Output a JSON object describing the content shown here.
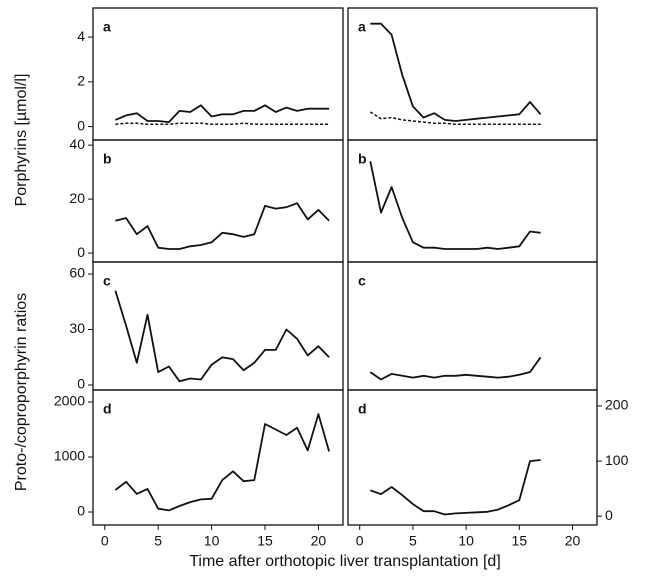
{
  "xlabel": "Time after orthotopic liver transplantation [d]",
  "ylabels": [
    "Porphyrins [µmol/l]",
    "Proto-/coproporphyrin ratios"
  ],
  "chart_data": [
    {
      "type": "line",
      "label": "a",
      "x": [
        1,
        2,
        3,
        4,
        5,
        6,
        7,
        8,
        9,
        10,
        11,
        12,
        13,
        14,
        15,
        16,
        17,
        18,
        19,
        20,
        21
      ],
      "xlim": [
        -1.1,
        22.3
      ],
      "ylim": [
        -0.6,
        5.3
      ],
      "yticks": [
        0,
        2,
        4
      ],
      "series": [
        {
          "color": "#111",
          "dashed": false,
          "values": [
            0.3,
            0.5,
            0.6,
            0.25,
            0.25,
            0.2,
            0.7,
            0.65,
            0.95,
            0.45,
            0.55,
            0.55,
            0.7,
            0.7,
            0.95,
            0.65,
            0.85,
            0.7,
            0.8,
            0.8,
            0.8
          ]
        },
        {
          "color": "#111",
          "dashed": true,
          "values": [
            0.1,
            0.15,
            0.15,
            0.1,
            0.1,
            0.1,
            0.15,
            0.15,
            0.15,
            0.1,
            0.1,
            0.1,
            0.15,
            0.1,
            0.1,
            0.1,
            0.1,
            0.1,
            0.1,
            0.1,
            0.1
          ]
        }
      ]
    },
    {
      "type": "line",
      "label": "a",
      "x": [
        1,
        2,
        3,
        4,
        5,
        6,
        7,
        8,
        9,
        10,
        11,
        12,
        13,
        14,
        15,
        16,
        17
      ],
      "xlim": [
        -1.1,
        22.3
      ],
      "ylim": [
        -0.6,
        5.3
      ],
      "series": [
        {
          "color": "#111",
          "dashed": false,
          "values": [
            4.6,
            4.6,
            4.1,
            2.3,
            0.9,
            0.4,
            0.6,
            0.3,
            0.25,
            0.3,
            0.35,
            0.4,
            0.45,
            0.5,
            0.55,
            1.1,
            0.55
          ]
        },
        {
          "color": "#111",
          "dashed": true,
          "values": [
            0.65,
            0.35,
            0.4,
            0.3,
            0.25,
            0.2,
            0.15,
            0.15,
            0.1,
            0.1,
            0.1,
            0.1,
            0.1,
            0.1,
            0.1,
            0.1,
            0.1
          ]
        }
      ]
    },
    {
      "type": "line",
      "label": "b",
      "x": [
        1,
        2,
        3,
        4,
        5,
        6,
        7,
        8,
        9,
        10,
        11,
        12,
        13,
        14,
        15,
        16,
        17,
        18,
        19,
        20,
        21
      ],
      "xlim": [
        -1.1,
        22.3
      ],
      "ylim": [
        -3.3,
        41.9
      ],
      "yticks": [
        0,
        20,
        40
      ],
      "series": [
        {
          "color": "#111",
          "dashed": false,
          "values": [
            12,
            13,
            7,
            10,
            2,
            1.5,
            1.5,
            2.5,
            3,
            4,
            7.5,
            7,
            6,
            7,
            17.5,
            16.5,
            17,
            18.5,
            12.5,
            16,
            12
          ]
        }
      ]
    },
    {
      "type": "line",
      "label": "b",
      "x": [
        1,
        2,
        3,
        4,
        5,
        6,
        7,
        8,
        9,
        10,
        11,
        12,
        13,
        14,
        15,
        16,
        17
      ],
      "xlim": [
        -1.1,
        22.3
      ],
      "ylim": [
        -3.3,
        41.9
      ],
      "series": [
        {
          "color": "#111",
          "dashed": false,
          "values": [
            34,
            15,
            24.5,
            13,
            4,
            2,
            2,
            1.5,
            1.5,
            1.5,
            1.5,
            2,
            1.5,
            2,
            2.5,
            8,
            7.5
          ]
        }
      ]
    },
    {
      "type": "line",
      "label": "c",
      "x": [
        1,
        2,
        3,
        4,
        5,
        6,
        7,
        8,
        9,
        10,
        11,
        12,
        13,
        14,
        15,
        16,
        17,
        18,
        19,
        20,
        21
      ],
      "xlim": [
        -1.1,
        22.3
      ],
      "ylim": [
        -2.7,
        66.5
      ],
      "yticks": [
        0,
        30,
        60
      ],
      "series": [
        {
          "color": "#111",
          "dashed": false,
          "values": [
            51,
            32,
            12,
            38,
            7,
            10,
            2,
            3.5,
            3,
            11,
            15,
            14,
            8,
            12,
            19,
            19,
            30,
            25,
            16,
            21,
            15
          ]
        }
      ]
    },
    {
      "type": "line",
      "label": "c",
      "x": [
        1,
        2,
        3,
        4,
        5,
        6,
        7,
        8,
        9,
        10,
        11,
        12,
        13,
        14,
        15,
        16,
        17
      ],
      "xlim": [
        -1.1,
        22.3
      ],
      "ylim": [
        -2.7,
        66.5
      ],
      "series": [
        {
          "color": "#111",
          "dashed": false,
          "values": [
            7,
            3,
            6,
            5,
            4,
            5,
            4,
            5,
            5,
            5.5,
            5,
            4.5,
            4,
            4.5,
            5.5,
            7,
            15
          ]
        }
      ]
    },
    {
      "type": "line",
      "label": "d",
      "x": [
        1,
        2,
        3,
        4,
        5,
        6,
        7,
        8,
        9,
        10,
        11,
        12,
        13,
        14,
        15,
        16,
        17,
        18,
        19,
        20,
        21
      ],
      "xlim": [
        -1.1,
        22.3
      ],
      "xticks": [
        0,
        5,
        10,
        15,
        20
      ],
      "ylim": [
        -236,
        2218
      ],
      "yticks": [
        0,
        1000,
        2000
      ],
      "series": [
        {
          "color": "#111",
          "dashed": false,
          "values": [
            400,
            550,
            330,
            420,
            60,
            30,
            110,
            180,
            230,
            240,
            580,
            740,
            560,
            580,
            1600,
            1500,
            1400,
            1530,
            1120,
            1780,
            1100
          ]
        }
      ]
    },
    {
      "type": "line",
      "label": "d",
      "x": [
        1,
        2,
        3,
        4,
        5,
        6,
        7,
        8,
        9,
        10,
        11,
        12,
        13,
        14,
        15,
        16,
        17
      ],
      "xlim": [
        -1.1,
        22.3
      ],
      "xticks": [
        0,
        5,
        10,
        15,
        20
      ],
      "ylim": [
        -16,
        229
      ],
      "yticks": [
        0,
        100,
        200
      ],
      "y_axis_position": "right",
      "series": [
        {
          "color": "#111",
          "dashed": false,
          "values": [
            47,
            40,
            53,
            38,
            22,
            9,
            9,
            3,
            5,
            6,
            7,
            8,
            12,
            20,
            29,
            100,
            102
          ]
        }
      ]
    }
  ]
}
